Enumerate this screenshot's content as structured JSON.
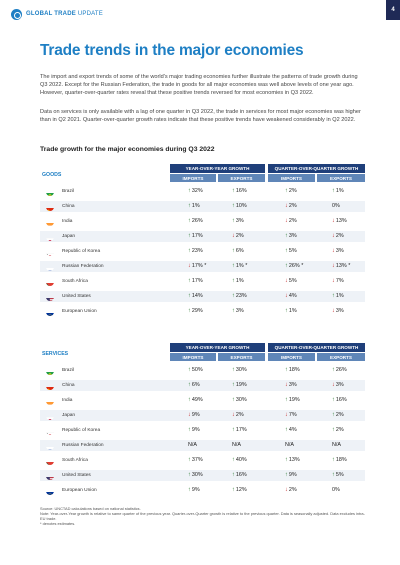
{
  "header": {
    "brand": "GLOBAL TRADE",
    "brand_light": "UPDATE",
    "page_number": "4"
  },
  "title": "Trade trends in the major economies",
  "paragraph1": "The import and export trends of some of the world's major trading economies further illustrate the patterns of trade growth during Q3 2022. Except for the Russian Federation, the trade in goods for all major economies was well above levels of one year ago. However, quarter-over-quarter rates reveal that these positive trends reversed for most economies in Q3 2022.",
  "paragraph2": "Data on services is only available with a lag of one quarter in Q3 2022, the trade in services for most major economies was higher than in Q2 2021. Quarter-over-quarter growth rates indicate that these positive trends have weakened considerably in Q2 2022.",
  "subtitle": "Trade growth for the major economies during Q3 2022",
  "column_groups": {
    "yoy": "YEAR-OVER-YEAR GROWTH",
    "qoq": "QUARTER-OVER-QUARTER GROWTH"
  },
  "column_sub": {
    "imports": "IMPORTS",
    "exports": "EXPORTS"
  },
  "goods": {
    "label": "GOODS",
    "rows": [
      {
        "country": "Brazil",
        "flag": "brazil",
        "cells": [
          {
            "dir": "up",
            "val": "32%"
          },
          {
            "dir": "up",
            "val": "16%"
          },
          {
            "dir": "up",
            "val": "2%"
          },
          {
            "dir": "up",
            "val": "1%"
          }
        ]
      },
      {
        "country": "China",
        "flag": "china",
        "cells": [
          {
            "dir": "up",
            "val": "1%"
          },
          {
            "dir": "up",
            "val": "10%"
          },
          {
            "dir": "down",
            "val": "2%"
          },
          {
            "dir": "",
            "val": "0%"
          }
        ]
      },
      {
        "country": "India",
        "flag": "india",
        "cells": [
          {
            "dir": "up",
            "val": "26%"
          },
          {
            "dir": "up",
            "val": "3%"
          },
          {
            "dir": "down",
            "val": "2%"
          },
          {
            "dir": "down",
            "val": "13%"
          }
        ]
      },
      {
        "country": "Japan",
        "flag": "japan",
        "cells": [
          {
            "dir": "up",
            "val": "17%"
          },
          {
            "dir": "down",
            "val": "2%"
          },
          {
            "dir": "up",
            "val": "3%"
          },
          {
            "dir": "down",
            "val": "2%"
          }
        ]
      },
      {
        "country": "Republic of Korea",
        "flag": "korea",
        "cells": [
          {
            "dir": "up",
            "val": "23%"
          },
          {
            "dir": "up",
            "val": "6%"
          },
          {
            "dir": "up",
            "val": "5%"
          },
          {
            "dir": "down",
            "val": "3%"
          }
        ]
      },
      {
        "country": "Russian Federation",
        "flag": "russia",
        "cells": [
          {
            "dir": "down",
            "val": "17% *"
          },
          {
            "dir": "up",
            "val": "1% *"
          },
          {
            "dir": "up",
            "val": "26% *"
          },
          {
            "dir": "down",
            "val": "13% *"
          }
        ]
      },
      {
        "country": "South Africa",
        "flag": "southafrica",
        "cells": [
          {
            "dir": "up",
            "val": "17%"
          },
          {
            "dir": "up",
            "val": "1%"
          },
          {
            "dir": "down",
            "val": "5%"
          },
          {
            "dir": "down",
            "val": "7%"
          }
        ]
      },
      {
        "country": "United States",
        "flag": "usa",
        "cells": [
          {
            "dir": "up",
            "val": "14%"
          },
          {
            "dir": "up",
            "val": "23%"
          },
          {
            "dir": "down",
            "val": "4%"
          },
          {
            "dir": "up",
            "val": "1%"
          }
        ]
      },
      {
        "country": "European Union",
        "flag": "eu",
        "cells": [
          {
            "dir": "up",
            "val": "29%"
          },
          {
            "dir": "up",
            "val": "3%"
          },
          {
            "dir": "up",
            "val": "1%"
          },
          {
            "dir": "down",
            "val": "3%"
          }
        ]
      }
    ]
  },
  "services": {
    "label": "SERVICES",
    "rows": [
      {
        "country": "Brazil",
        "flag": "brazil",
        "cells": [
          {
            "dir": "up",
            "val": "50%"
          },
          {
            "dir": "up",
            "val": "30%"
          },
          {
            "dir": "up",
            "val": "18%"
          },
          {
            "dir": "up",
            "val": "26%"
          }
        ]
      },
      {
        "country": "China",
        "flag": "china",
        "cells": [
          {
            "dir": "up",
            "val": "6%"
          },
          {
            "dir": "up",
            "val": "19%"
          },
          {
            "dir": "down",
            "val": "3%"
          },
          {
            "dir": "down",
            "val": "3%"
          }
        ]
      },
      {
        "country": "India",
        "flag": "india",
        "cells": [
          {
            "dir": "up",
            "val": "49%"
          },
          {
            "dir": "up",
            "val": "30%"
          },
          {
            "dir": "up",
            "val": "19%"
          },
          {
            "dir": "up",
            "val": "16%"
          }
        ]
      },
      {
        "country": "Japan",
        "flag": "japan",
        "cells": [
          {
            "dir": "down",
            "val": "9%"
          },
          {
            "dir": "down",
            "val": "2%"
          },
          {
            "dir": "down",
            "val": "7%"
          },
          {
            "dir": "up",
            "val": "2%"
          }
        ]
      },
      {
        "country": "Republic of Korea",
        "flag": "korea",
        "cells": [
          {
            "dir": "up",
            "val": "9%"
          },
          {
            "dir": "up",
            "val": "17%"
          },
          {
            "dir": "up",
            "val": "4%"
          },
          {
            "dir": "up",
            "val": "2%"
          }
        ]
      },
      {
        "country": "Russian Federation",
        "flag": "russia",
        "cells": [
          {
            "dir": "",
            "val": "N/A"
          },
          {
            "dir": "",
            "val": "N/A"
          },
          {
            "dir": "",
            "val": "N/A"
          },
          {
            "dir": "",
            "val": "N/A"
          }
        ]
      },
      {
        "country": "South Africa",
        "flag": "southafrica",
        "cells": [
          {
            "dir": "up",
            "val": "37%"
          },
          {
            "dir": "up",
            "val": "40%"
          },
          {
            "dir": "up",
            "val": "13%"
          },
          {
            "dir": "up",
            "val": "18%"
          }
        ]
      },
      {
        "country": "United States",
        "flag": "usa",
        "cells": [
          {
            "dir": "up",
            "val": "30%"
          },
          {
            "dir": "up",
            "val": "16%"
          },
          {
            "dir": "up",
            "val": "9%"
          },
          {
            "dir": "up",
            "val": "5%"
          }
        ]
      },
      {
        "country": "European Union",
        "flag": "eu",
        "cells": [
          {
            "dir": "up",
            "val": "9%"
          },
          {
            "dir": "up",
            "val": "12%"
          },
          {
            "dir": "down",
            "val": "2%"
          },
          {
            "dir": "",
            "val": "0%"
          }
        ]
      }
    ]
  },
  "notes": [
    "Source: UNCTAD calculations based on national statistics.",
    "Note: Year-over-Year growth is relative to same quarter of the previous year. Quarter-over-Quarter growth is relative to the previous quarter. Data is seasonally adjusted. Data excludes intra-EU trade.",
    "* denotes estimates."
  ],
  "colors": {
    "accent": "#1e7fc4",
    "header_dark": "#1f3f7a",
    "header_light": "#5f86b8",
    "up": "#2e7d32",
    "down": "#c62828"
  }
}
